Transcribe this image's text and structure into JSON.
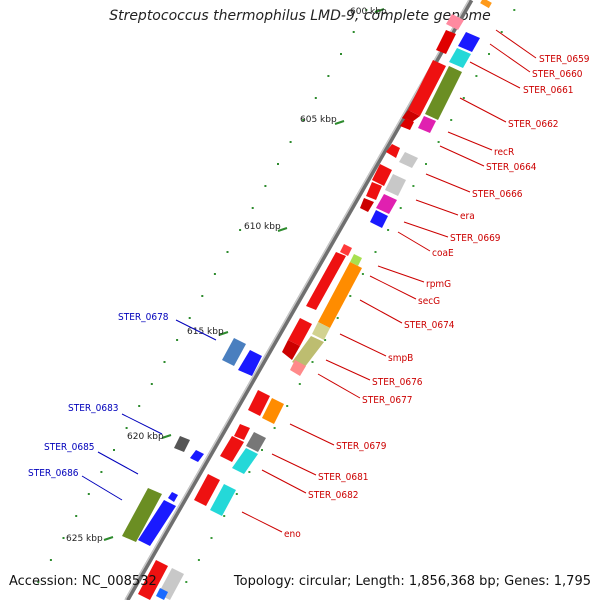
{
  "title": "Streptococcus thermophilus LMD-9, complete genome",
  "footer": {
    "accession": "Accession: NC_008532",
    "topology": "Topology: circular; Length: 1,856,368 bp; Genes: 1,795"
  },
  "colors": {
    "forward_label": "#cc0000",
    "reverse_label": "#0000bb",
    "backbone": "#7a7a7a",
    "tick": "#2e8b2e"
  },
  "ticks": [
    {
      "label": "600 kbp"
    },
    {
      "label": "605 kbp"
    },
    {
      "label": "610 kbp"
    },
    {
      "label": "615 kbp"
    },
    {
      "label": "620 kbp"
    },
    {
      "label": "625 kbp"
    }
  ],
  "labels_right": [
    {
      "text": "STER_0659"
    },
    {
      "text": "STER_0660"
    },
    {
      "text": "STER_0661"
    },
    {
      "text": "STER_0662"
    },
    {
      "text": "recR"
    },
    {
      "text": "STER_0664"
    },
    {
      "text": "STER_0666"
    },
    {
      "text": "era"
    },
    {
      "text": "STER_0669"
    },
    {
      "text": "coaE"
    },
    {
      "text": "rpmG"
    },
    {
      "text": "secG"
    },
    {
      "text": "STER_0674"
    },
    {
      "text": "smpB"
    },
    {
      "text": "STER_0676"
    },
    {
      "text": "STER_0677"
    },
    {
      "text": "STER_0679"
    },
    {
      "text": "STER_0681"
    },
    {
      "text": "STER_0682"
    },
    {
      "text": "eno"
    }
  ],
  "labels_left": [
    {
      "text": "STER_0678"
    },
    {
      "text": "STER_0683"
    },
    {
      "text": "STER_0685"
    },
    {
      "text": "STER_0686"
    }
  ]
}
